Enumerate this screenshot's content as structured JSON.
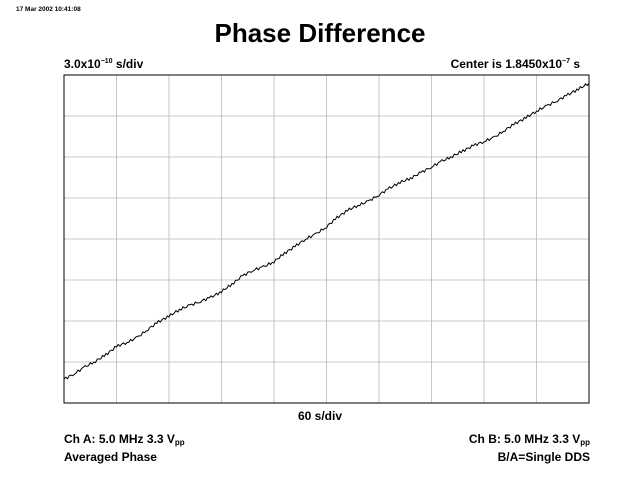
{
  "timestamp": "17 Mar 2002 10:41:08",
  "chart_data": {
    "type": "line",
    "title": "Phase Difference",
    "y_scale": {
      "mantissa": "3.0x10",
      "exponent": "−10",
      "unit": " s/div"
    },
    "center": {
      "prefix": "Center is 1.8450x10",
      "exponent": "−7",
      "unit": " s"
    },
    "x_scale": "60 s/div",
    "grid": true,
    "xlim": [
      0,
      600
    ],
    "ylim": [
      -4,
      4
    ],
    "x_divisions": 10,
    "y_divisions": 8,
    "series": [
      {
        "color": "#000000",
        "x": [
          0,
          12,
          24,
          36,
          48,
          60,
          72,
          84,
          96,
          108,
          120,
          132,
          144,
          156,
          168,
          180,
          192,
          204,
          216,
          228,
          240,
          252,
          264,
          276,
          288,
          300,
          312,
          324,
          336,
          348,
          360,
          372,
          384,
          396,
          408,
          420,
          432,
          444,
          456,
          468,
          480,
          492,
          504,
          516,
          528,
          540,
          552,
          564,
          576,
          588,
          600
        ],
        "values": [
          -3.42,
          -3.28,
          -3.12,
          -2.98,
          -2.82,
          -2.62,
          -2.52,
          -2.4,
          -2.2,
          -2.02,
          -1.88,
          -1.72,
          -1.62,
          -1.52,
          -1.42,
          -1.28,
          -1.1,
          -0.9,
          -0.76,
          -0.68,
          -0.55,
          -0.35,
          -0.18,
          0.0,
          0.12,
          0.3,
          0.52,
          0.7,
          0.82,
          0.92,
          1.08,
          1.24,
          1.38,
          1.48,
          1.62,
          1.76,
          1.9,
          2.02,
          2.15,
          2.28,
          2.38,
          2.48,
          2.66,
          2.82,
          2.96,
          3.12,
          3.25,
          3.38,
          3.52,
          3.66,
          3.8
        ]
      }
    ]
  },
  "footer": {
    "ch_a_line1": "Ch A: 5.0 MHz 3.3 V",
    "ch_a_sub": "pp",
    "ch_a_line2": "Averaged Phase",
    "ch_b_line1": "Ch B: 5.0 MHz 3.3 V",
    "ch_b_sub": "pp",
    "ch_b_line2": "B/A=Single DDS"
  }
}
